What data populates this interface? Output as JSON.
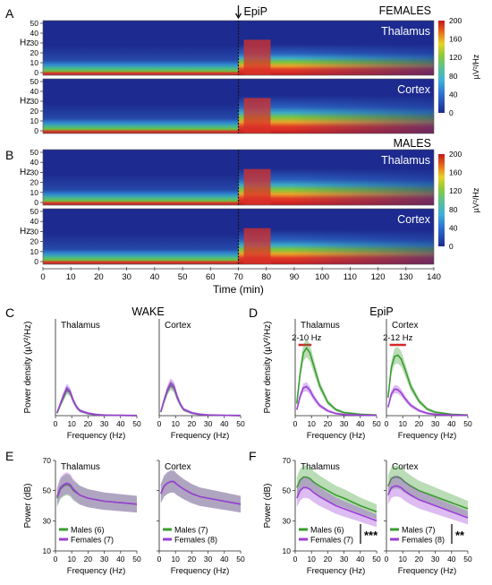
{
  "panel_letters": [
    "A",
    "B",
    "C",
    "D",
    "E",
    "F"
  ],
  "spectrograms": {
    "time_axis": {
      "label": "Time (min)",
      "ticks": [
        "0",
        "10",
        "20",
        "30",
        "40",
        "50",
        "60",
        "70",
        "80",
        "90",
        "100",
        "110",
        "120",
        "130",
        "140"
      ],
      "range": [
        0,
        140
      ]
    },
    "epip_label": "EpiP",
    "epip_time": 70,
    "freq_ticks": [
      "0",
      "10",
      "20",
      "30",
      "40",
      "50"
    ],
    "hz_label": "Hz",
    "females": {
      "group_label": "FEMALES",
      "thalamus": "Thalamus",
      "cortex": "Cortex"
    },
    "males": {
      "group_label": "MALES",
      "thalamus": "Thalamus",
      "cortex": "Cortex"
    },
    "colorbar": {
      "label": "µV²/Hz",
      "ticks": [
        "0",
        "40",
        "80",
        "120",
        "160",
        "200"
      ],
      "range": [
        0,
        200
      ]
    }
  },
  "chart_data": [
    {
      "panel": "C",
      "type": "line",
      "title": "WAKE",
      "subplots": [
        {
          "name": "Thalamus",
          "x": [
            1,
            3,
            5,
            7,
            9,
            11,
            13,
            15,
            20,
            25,
            30,
            40,
            50
          ],
          "series": [
            {
              "color": "#3a9c2f",
              "values": [
                20,
                90,
                150,
                210,
                190,
                120,
                70,
                40,
                18,
                8,
                4,
                2,
                1
              ]
            },
            {
              "color": "#9b3fd6",
              "values": [
                25,
                100,
                170,
                230,
                200,
                125,
                72,
                42,
                20,
                9,
                4,
                2,
                1
              ]
            }
          ]
        },
        {
          "name": "Cortex",
          "x": [
            1,
            3,
            5,
            7,
            9,
            11,
            13,
            15,
            20,
            25,
            30,
            40,
            50
          ],
          "series": [
            {
              "color": "#3a9c2f",
              "values": [
                30,
                120,
                200,
                250,
                230,
                150,
                90,
                50,
                22,
                10,
                5,
                2,
                1
              ]
            },
            {
              "color": "#9b3fd6",
              "values": [
                35,
                130,
                215,
                270,
                245,
                160,
                95,
                52,
                23,
                10,
                5,
                2,
                1
              ]
            }
          ]
        }
      ],
      "xlabel": "Frequency (Hz)",
      "ylabel": "Power density (µV²/Hz)",
      "xticks": [
        "0",
        "10",
        "20",
        "30",
        "40",
        "50"
      ],
      "xlim": [
        0,
        50
      ],
      "ylim": [
        0,
        800
      ]
    },
    {
      "panel": "D",
      "type": "line",
      "title": "EpiP",
      "subplots": [
        {
          "name": "Thalamus",
          "annotation": "2-10 Hz",
          "x": [
            1,
            3,
            5,
            7,
            9,
            11,
            13,
            15,
            20,
            25,
            30,
            40,
            50
          ],
          "series": [
            {
              "color": "#3a9c2f",
              "values": [
                100,
                350,
                520,
                560,
                520,
                430,
                340,
                250,
                110,
                50,
                25,
                10,
                5
              ]
            },
            {
              "color": "#9b3fd6",
              "values": [
                50,
                160,
                230,
                240,
                210,
                160,
                120,
                85,
                40,
                18,
                9,
                4,
                2
              ]
            }
          ]
        },
        {
          "name": "Cortex",
          "annotation": "2-12 Hz",
          "x": [
            1,
            3,
            5,
            7,
            9,
            11,
            13,
            15,
            20,
            25,
            30,
            40,
            50
          ],
          "series": [
            {
              "color": "#3a9c2f",
              "values": [
                150,
                400,
                490,
                500,
                470,
                400,
                320,
                240,
                120,
                55,
                28,
                10,
                5
              ]
            },
            {
              "color": "#9b3fd6",
              "values": [
                70,
                180,
                220,
                215,
                190,
                150,
                115,
                85,
                42,
                20,
                10,
                4,
                2
              ]
            }
          ]
        }
      ],
      "xlabel": "Frequency (Hz)",
      "ylabel": "Power density (µV²/Hz)",
      "xticks": [
        "0",
        "10",
        "20",
        "30",
        "40",
        "50"
      ],
      "xlim": [
        0,
        50
      ],
      "ylim": [
        0,
        800
      ]
    },
    {
      "panel": "E",
      "type": "line",
      "subplots": [
        {
          "name": "Thalamus",
          "x": [
            1,
            3,
            5,
            7,
            9,
            11,
            15,
            20,
            25,
            30,
            40,
            50
          ],
          "series": [
            {
              "color": "#3a9c2f",
              "values": [
                45,
                51,
                53,
                54,
                53,
                50,
                47,
                45,
                44,
                43,
                42,
                41
              ]
            },
            {
              "color": "#9b3fd6",
              "values": [
                46,
                52,
                54,
                55,
                54,
                51,
                47,
                45,
                44,
                43,
                42,
                41
              ]
            }
          ],
          "legend": [
            "Males (6)",
            "Females (7)"
          ]
        },
        {
          "name": "Cortex",
          "x": [
            1,
            3,
            5,
            7,
            9,
            11,
            15,
            20,
            25,
            30,
            40,
            50
          ],
          "series": [
            {
              "color": "#3a9c2f",
              "values": [
                48,
                53,
                55,
                56,
                56,
                54,
                51,
                48,
                46,
                45,
                43,
                41
              ]
            },
            {
              "color": "#9b3fd6",
              "values": [
                48,
                53,
                55,
                56,
                56,
                54,
                51,
                48,
                46,
                45,
                43,
                41
              ]
            }
          ],
          "legend": [
            "Males (7)",
            "Females (8)"
          ]
        }
      ],
      "xlabel": "Frequency (Hz)",
      "ylabel": "Power (dB)",
      "xticks": [
        "0",
        "10",
        "20",
        "30",
        "40",
        "50"
      ],
      "yticks": [
        "10",
        "30",
        "50",
        "70"
      ],
      "xlim": [
        0,
        50
      ],
      "ylim": [
        10,
        70
      ]
    },
    {
      "panel": "F",
      "type": "line",
      "subplots": [
        {
          "name": "Thalamus",
          "x": [
            1,
            3,
            5,
            7,
            9,
            11,
            15,
            20,
            25,
            30,
            40,
            50
          ],
          "series": [
            {
              "color": "#3a9c2f",
              "values": [
                52,
                57,
                59,
                59,
                58,
                56,
                53,
                50,
                47,
                45,
                40,
                36
              ]
            },
            {
              "color": "#9b3fd6",
              "values": [
                45,
                50,
                52,
                52,
                51,
                49,
                46,
                43,
                40,
                38,
                34,
                30
              ]
            }
          ],
          "legend": [
            "Males (6)",
            "Females (7)"
          ],
          "significance": "***"
        },
        {
          "name": "Cortex",
          "x": [
            1,
            3,
            5,
            7,
            9,
            11,
            15,
            20,
            25,
            30,
            40,
            50
          ],
          "series": [
            {
              "color": "#3a9c2f",
              "values": [
                53,
                58,
                59,
                59,
                58,
                56,
                53,
                50,
                48,
                46,
                42,
                38
              ]
            },
            {
              "color": "#9b3fd6",
              "values": [
                47,
                52,
                53,
                53,
                52,
                50,
                47,
                44,
                42,
                40,
                36,
                32
              ]
            }
          ],
          "legend": [
            "Males (7)",
            "Females (8)"
          ],
          "significance": "**"
        }
      ],
      "xlabel": "Frequency (Hz)",
      "ylabel": "Power (dB)",
      "xticks": [
        "0",
        "10",
        "20",
        "30",
        "40",
        "50"
      ],
      "yticks": [
        "10",
        "30",
        "50",
        "70"
      ],
      "xlim": [
        0,
        50
      ],
      "ylim": [
        10,
        70
      ]
    }
  ]
}
